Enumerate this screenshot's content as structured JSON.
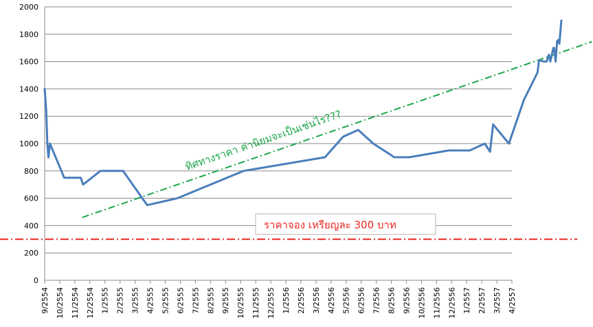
{
  "chart_data": {
    "type": "line",
    "title": "",
    "xlabel": "",
    "ylabel": "",
    "ylim": [
      0,
      2000
    ],
    "y_ticks": [
      0,
      200,
      400,
      600,
      800,
      1000,
      1200,
      1400,
      1600,
      1800,
      2000
    ],
    "grid": "horizontal",
    "x_categories": [
      "9/2554",
      "10/2554",
      "11/2554",
      "12/2554",
      "1/2555",
      "2/2555",
      "3/2555",
      "4/2555",
      "5/2555",
      "6/2555",
      "7/2555",
      "8/2555",
      "9/2555",
      "10/2555",
      "11/2555",
      "12/2555",
      "1/2556",
      "2/2556",
      "3/2556",
      "4/2556",
      "5/2556",
      "6/2556",
      "7/2556",
      "8/2556",
      "9/2556",
      "10/2556",
      "11/2556",
      "12/2556",
      "1/2557",
      "2/2557",
      "3/2557",
      "4/2557"
    ],
    "series": [
      {
        "name": "",
        "color": "#4a7ebb",
        "points": [
          [
            0.0,
            1400
          ],
          [
            0.1,
            1250
          ],
          [
            0.18,
            1000
          ],
          [
            0.25,
            900
          ],
          [
            0.35,
            1000
          ],
          [
            1.3,
            750
          ],
          [
            2.4,
            750
          ],
          [
            2.55,
            700
          ],
          [
            3.7,
            800
          ],
          [
            5.2,
            800
          ],
          [
            6.8,
            550
          ],
          [
            8.8,
            600
          ],
          [
            13.2,
            800
          ],
          [
            18.6,
            900
          ],
          [
            19.8,
            1050
          ],
          [
            20.8,
            1100
          ],
          [
            21.8,
            1000
          ],
          [
            23.2,
            900
          ],
          [
            24.2,
            900
          ],
          [
            26.8,
            950
          ],
          [
            28.2,
            950
          ],
          [
            29.2,
            1000
          ],
          [
            29.55,
            940
          ],
          [
            29.75,
            1140
          ],
          [
            30.8,
            1000
          ],
          [
            31.8,
            1320
          ],
          [
            32.7,
            1520
          ],
          [
            32.8,
            1610
          ],
          [
            33.1,
            1600
          ],
          [
            33.3,
            1600
          ],
          [
            33.45,
            1650
          ],
          [
            33.55,
            1600
          ],
          [
            33.75,
            1700
          ],
          [
            33.8,
            1700
          ],
          [
            33.9,
            1600
          ],
          [
            34.0,
            1750
          ],
          [
            34.1,
            1760
          ],
          [
            34.15,
            1730
          ],
          [
            34.22,
            1820
          ],
          [
            34.28,
            1900
          ]
        ]
      }
    ],
    "annotations": [
      {
        "kind": "trend-line",
        "label": "ทิศทางราคา ค่านิยมจะเป็นเช่นไร???",
        "color": "#1aa64a",
        "from": [
          2.5,
          460
        ],
        "to": [
          36.3,
          1745
        ]
      },
      {
        "kind": "reference-line",
        "label": "ราคาจอง  เหรียญละ 300 บาท",
        "color": "#e8251f",
        "value": 300
      }
    ]
  }
}
